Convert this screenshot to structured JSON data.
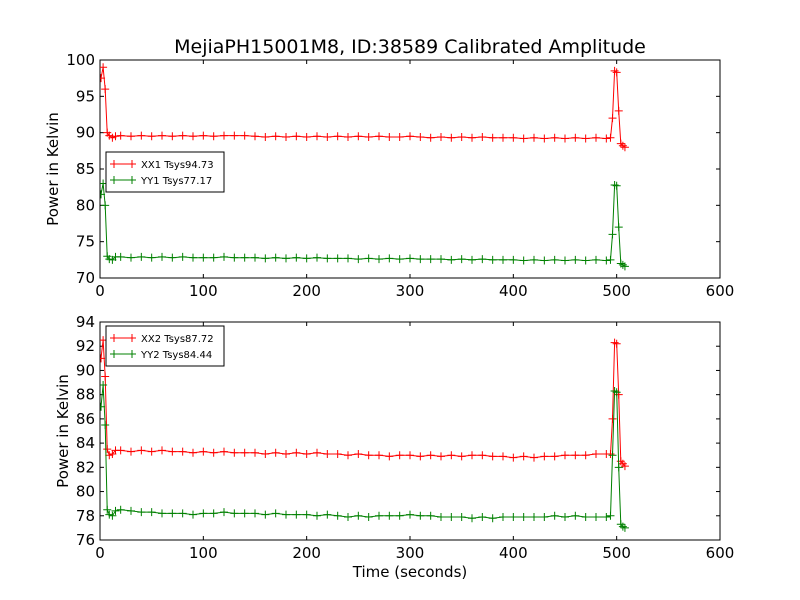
{
  "figure_title": "MejiaPH15001M8, ID:38589 Calibrated Amplitude",
  "xlabel": "Time (seconds)",
  "chart_data": [
    {
      "type": "line",
      "title": "MejiaPH15001M8, ID:38589 Calibrated Amplitude",
      "xlabel": "",
      "ylabel": "Power in Kelvin",
      "xlim": [
        0,
        600
      ],
      "ylim": [
        70,
        100
      ],
      "xticks": [
        0,
        100,
        200,
        300,
        400,
        500,
        600
      ],
      "yticks": [
        70,
        75,
        80,
        85,
        90,
        95,
        100
      ],
      "grid": false,
      "legend_position": "center-left",
      "series": [
        {
          "name": "XX1 Tsys94.73",
          "color": "#ff0000",
          "marker": "+",
          "points": [
            [
              1,
              97.5
            ],
            [
              3,
              99.0
            ],
            [
              5,
              96.0
            ],
            [
              7,
              90.0
            ],
            [
              9,
              89.6
            ],
            [
              12,
              89.3
            ],
            [
              15,
              89.5
            ],
            [
              20,
              89.6
            ],
            [
              30,
              89.5
            ],
            [
              40,
              89.6
            ],
            [
              50,
              89.5
            ],
            [
              60,
              89.6
            ],
            [
              70,
              89.5
            ],
            [
              80,
              89.6
            ],
            [
              90,
              89.5
            ],
            [
              100,
              89.6
            ],
            [
              110,
              89.5
            ],
            [
              120,
              89.6
            ],
            [
              130,
              89.6
            ],
            [
              140,
              89.6
            ],
            [
              150,
              89.5
            ],
            [
              160,
              89.4
            ],
            [
              170,
              89.5
            ],
            [
              180,
              89.4
            ],
            [
              190,
              89.5
            ],
            [
              200,
              89.4
            ],
            [
              210,
              89.5
            ],
            [
              220,
              89.4
            ],
            [
              230,
              89.5
            ],
            [
              240,
              89.4
            ],
            [
              250,
              89.5
            ],
            [
              260,
              89.4
            ],
            [
              270,
              89.5
            ],
            [
              280,
              89.4
            ],
            [
              290,
              89.4
            ],
            [
              300,
              89.5
            ],
            [
              310,
              89.4
            ],
            [
              320,
              89.3
            ],
            [
              330,
              89.4
            ],
            [
              340,
              89.3
            ],
            [
              350,
              89.4
            ],
            [
              360,
              89.3
            ],
            [
              370,
              89.4
            ],
            [
              380,
              89.3
            ],
            [
              390,
              89.3
            ],
            [
              400,
              89.3
            ],
            [
              410,
              89.2
            ],
            [
              420,
              89.3
            ],
            [
              430,
              89.2
            ],
            [
              440,
              89.3
            ],
            [
              450,
              89.2
            ],
            [
              460,
              89.3
            ],
            [
              470,
              89.2
            ],
            [
              480,
              89.3
            ],
            [
              490,
              89.2
            ],
            [
              494,
              89.3
            ],
            [
              496,
              92.0
            ],
            [
              498,
              98.5
            ],
            [
              500,
              98.3
            ],
            [
              502,
              93.0
            ],
            [
              504,
              88.5
            ],
            [
              506,
              88.2
            ],
            [
              508,
              88.0
            ]
          ]
        },
        {
          "name": "YY1 Tsys77.17",
          "color": "#008000",
          "marker": "+",
          "points": [
            [
              1,
              81.5
            ],
            [
              3,
              83.0
            ],
            [
              5,
              80.0
            ],
            [
              7,
              73.0
            ],
            [
              9,
              72.6
            ],
            [
              12,
              72.5
            ],
            [
              15,
              72.9
            ],
            [
              20,
              72.9
            ],
            [
              30,
              72.8
            ],
            [
              40,
              72.9
            ],
            [
              50,
              72.8
            ],
            [
              60,
              72.9
            ],
            [
              70,
              72.8
            ],
            [
              80,
              72.9
            ],
            [
              90,
              72.8
            ],
            [
              100,
              72.8
            ],
            [
              110,
              72.8
            ],
            [
              120,
              72.9
            ],
            [
              130,
              72.8
            ],
            [
              140,
              72.8
            ],
            [
              150,
              72.8
            ],
            [
              160,
              72.7
            ],
            [
              170,
              72.8
            ],
            [
              180,
              72.7
            ],
            [
              190,
              72.8
            ],
            [
              200,
              72.7
            ],
            [
              210,
              72.8
            ],
            [
              220,
              72.7
            ],
            [
              230,
              72.7
            ],
            [
              240,
              72.7
            ],
            [
              250,
              72.6
            ],
            [
              260,
              72.7
            ],
            [
              270,
              72.6
            ],
            [
              280,
              72.7
            ],
            [
              290,
              72.6
            ],
            [
              300,
              72.7
            ],
            [
              310,
              72.6
            ],
            [
              320,
              72.6
            ],
            [
              330,
              72.6
            ],
            [
              340,
              72.5
            ],
            [
              350,
              72.6
            ],
            [
              360,
              72.5
            ],
            [
              370,
              72.6
            ],
            [
              380,
              72.5
            ],
            [
              390,
              72.5
            ],
            [
              400,
              72.5
            ],
            [
              410,
              72.4
            ],
            [
              420,
              72.5
            ],
            [
              430,
              72.4
            ],
            [
              440,
              72.5
            ],
            [
              450,
              72.4
            ],
            [
              460,
              72.5
            ],
            [
              470,
              72.4
            ],
            [
              480,
              72.5
            ],
            [
              490,
              72.4
            ],
            [
              494,
              72.5
            ],
            [
              496,
              76.0
            ],
            [
              498,
              82.8
            ],
            [
              500,
              82.7
            ],
            [
              502,
              77.0
            ],
            [
              504,
              72.0
            ],
            [
              506,
              71.8
            ],
            [
              508,
              71.6
            ]
          ]
        }
      ]
    },
    {
      "type": "line",
      "title": "",
      "xlabel": "Time (seconds)",
      "ylabel": "Power in Kelvin",
      "xlim": [
        0,
        600
      ],
      "ylim": [
        76,
        94
      ],
      "xticks": [
        0,
        100,
        200,
        300,
        400,
        500,
        600
      ],
      "yticks": [
        76,
        78,
        80,
        82,
        84,
        86,
        88,
        90,
        92,
        94
      ],
      "grid": false,
      "legend_position": "upper-left",
      "series": [
        {
          "name": "XX2 Tsys87.72",
          "color": "#ff0000",
          "marker": "+",
          "points": [
            [
              1,
              91.0
            ],
            [
              3,
              92.5
            ],
            [
              5,
              89.5
            ],
            [
              7,
              83.5
            ],
            [
              9,
              83.0
            ],
            [
              12,
              83.1
            ],
            [
              15,
              83.4
            ],
            [
              20,
              83.4
            ],
            [
              30,
              83.3
            ],
            [
              40,
              83.4
            ],
            [
              50,
              83.3
            ],
            [
              60,
              83.4
            ],
            [
              70,
              83.3
            ],
            [
              80,
              83.3
            ],
            [
              90,
              83.2
            ],
            [
              100,
              83.3
            ],
            [
              110,
              83.2
            ],
            [
              120,
              83.3
            ],
            [
              130,
              83.2
            ],
            [
              140,
              83.2
            ],
            [
              150,
              83.2
            ],
            [
              160,
              83.1
            ],
            [
              170,
              83.2
            ],
            [
              180,
              83.1
            ],
            [
              190,
              83.2
            ],
            [
              200,
              83.1
            ],
            [
              210,
              83.2
            ],
            [
              220,
              83.1
            ],
            [
              230,
              83.1
            ],
            [
              240,
              83.0
            ],
            [
              250,
              83.1
            ],
            [
              260,
              83.0
            ],
            [
              270,
              83.0
            ],
            [
              280,
              82.9
            ],
            [
              290,
              83.0
            ],
            [
              300,
              83.0
            ],
            [
              310,
              82.9
            ],
            [
              320,
              83.0
            ],
            [
              330,
              82.9
            ],
            [
              340,
              83.0
            ],
            [
              350,
              82.9
            ],
            [
              360,
              83.0
            ],
            [
              370,
              83.0
            ],
            [
              380,
              82.9
            ],
            [
              390,
              82.9
            ],
            [
              400,
              82.8
            ],
            [
              410,
              82.9
            ],
            [
              420,
              82.8
            ],
            [
              430,
              82.9
            ],
            [
              440,
              82.9
            ],
            [
              450,
              83.0
            ],
            [
              460,
              83.0
            ],
            [
              470,
              83.0
            ],
            [
              480,
              83.1
            ],
            [
              490,
              83.1
            ],
            [
              494,
              83.1
            ],
            [
              496,
              86.0
            ],
            [
              498,
              92.3
            ],
            [
              500,
              92.2
            ],
            [
              502,
              88.0
            ],
            [
              504,
              82.5
            ],
            [
              506,
              82.3
            ],
            [
              508,
              82.1
            ]
          ]
        },
        {
          "name": "YY2 Tsys84.44",
          "color": "#008000",
          "marker": "+",
          "points": [
            [
              1,
              87.0
            ],
            [
              3,
              88.8
            ],
            [
              5,
              85.5
            ],
            [
              7,
              78.5
            ],
            [
              9,
              78.1
            ],
            [
              12,
              78.0
            ],
            [
              15,
              78.4
            ],
            [
              20,
              78.5
            ],
            [
              30,
              78.4
            ],
            [
              40,
              78.3
            ],
            [
              50,
              78.3
            ],
            [
              60,
              78.2
            ],
            [
              70,
              78.2
            ],
            [
              80,
              78.2
            ],
            [
              90,
              78.1
            ],
            [
              100,
              78.2
            ],
            [
              110,
              78.2
            ],
            [
              120,
              78.3
            ],
            [
              130,
              78.2
            ],
            [
              140,
              78.2
            ],
            [
              150,
              78.2
            ],
            [
              160,
              78.1
            ],
            [
              170,
              78.2
            ],
            [
              180,
              78.1
            ],
            [
              190,
              78.1
            ],
            [
              200,
              78.1
            ],
            [
              210,
              78.0
            ],
            [
              220,
              78.1
            ],
            [
              230,
              78.0
            ],
            [
              240,
              77.9
            ],
            [
              250,
              78.0
            ],
            [
              260,
              77.9
            ],
            [
              270,
              78.0
            ],
            [
              280,
              78.0
            ],
            [
              290,
              78.0
            ],
            [
              300,
              78.1
            ],
            [
              310,
              78.0
            ],
            [
              320,
              78.0
            ],
            [
              330,
              77.9
            ],
            [
              340,
              77.9
            ],
            [
              350,
              77.9
            ],
            [
              360,
              77.8
            ],
            [
              370,
              77.9
            ],
            [
              380,
              77.8
            ],
            [
              390,
              77.9
            ],
            [
              400,
              77.9
            ],
            [
              410,
              77.9
            ],
            [
              420,
              77.9
            ],
            [
              430,
              77.9
            ],
            [
              440,
              78.0
            ],
            [
              450,
              77.9
            ],
            [
              460,
              78.0
            ],
            [
              470,
              77.9
            ],
            [
              480,
              77.9
            ],
            [
              490,
              77.9
            ],
            [
              494,
              78.0
            ],
            [
              496,
              83.0
            ],
            [
              498,
              88.3
            ],
            [
              500,
              88.2
            ],
            [
              502,
              82.0
            ],
            [
              504,
              77.3
            ],
            [
              506,
              77.1
            ],
            [
              508,
              77.0
            ]
          ]
        }
      ]
    }
  ]
}
